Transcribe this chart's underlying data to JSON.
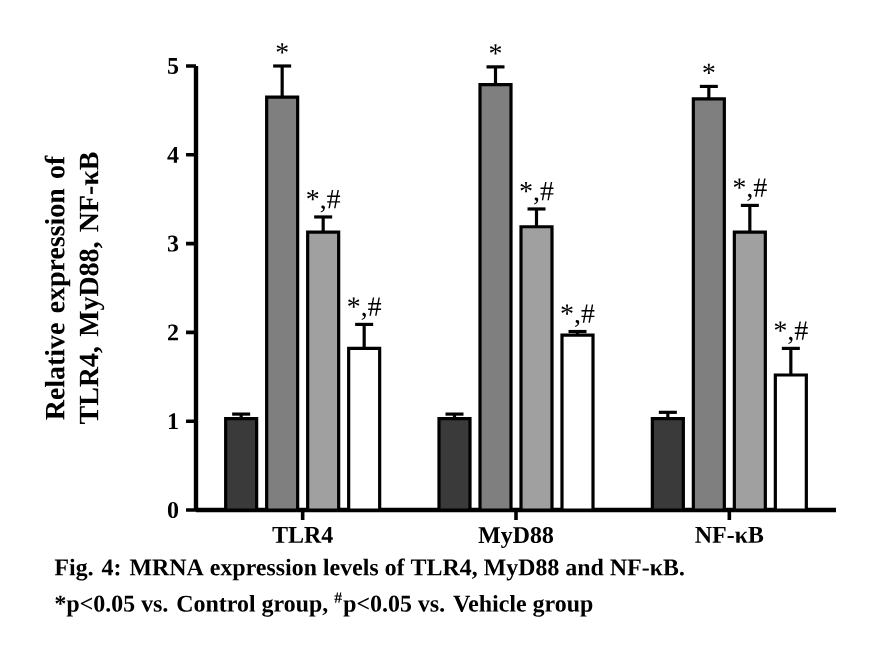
{
  "chart_data": {
    "type": "bar",
    "ylabel": "Relative expression of TLR4, MyD88, NF-κB",
    "categories": [
      "TLR4",
      "MyD88",
      "NF-κB"
    ],
    "series": [
      {
        "color": "#3a3a3a",
        "values": [
          1.03,
          1.03,
          1.03
        ],
        "errors": [
          0.05,
          0.05,
          0.07
        ]
      },
      {
        "color": "#7f7f7f",
        "values": [
          4.65,
          4.79,
          4.63
        ],
        "errors": [
          0.35,
          0.2,
          0.14
        ],
        "value_labels": [
          "*",
          "*",
          "*"
        ]
      },
      {
        "color": "#a0a0a0",
        "values": [
          3.13,
          3.19,
          3.13
        ],
        "errors": [
          0.17,
          0.2,
          0.3
        ],
        "value_labels": [
          "*,#",
          "*,#",
          "*,#"
        ]
      },
      {
        "color": "#ffffff",
        "values": [
          1.82,
          1.97,
          1.52
        ],
        "errors": [
          0.27,
          0.04,
          0.3
        ],
        "value_labels": [
          "*,#",
          "*,#",
          "*,#"
        ]
      }
    ],
    "ylim": [
      0,
      5
    ],
    "yticks": [
      0,
      1,
      2,
      3,
      4,
      5
    ],
    "annotations": [
      "Fig. 4: MRNA expression levels of TLR4, MyD88 and NF-κB.",
      "*p<0.05 vs. Control group, $^{#}$p<0.05 vs. Vehicle group"
    ]
  }
}
